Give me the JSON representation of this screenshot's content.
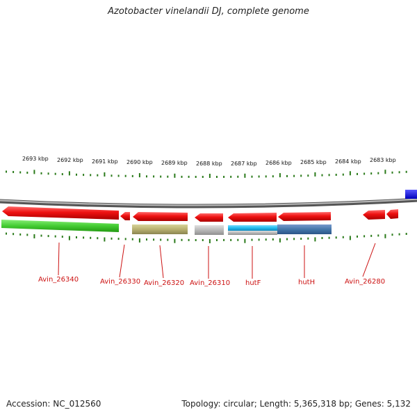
{
  "title": "Azotobacter vinelandii DJ, complete genome",
  "footer": {
    "accession": "Accession: NC_012560",
    "summary": "Topology: circular; Length: 5,365,318 bp; Genes: 5,132"
  },
  "scale_labels": [
    "2693 kbp",
    "2692 kbp",
    "2691 kbp",
    "2690 kbp",
    "2689 kbp",
    "2688 kbp",
    "2687 kbp",
    "2686 kbp",
    "2685 kbp",
    "2684 kbp",
    "2683 kbp"
  ],
  "gene_labels": [
    "Avin_26340",
    "Avin_26330",
    "Avin_26320",
    "Avin_26310",
    "hutF",
    "hutH",
    "Avin_26280"
  ],
  "colors": {
    "gene": "#ee1111",
    "tick": "#2a7a1a",
    "backbone": "#888888",
    "label": "#cc1111",
    "cds_green": "#44cc33",
    "cds_olive": "#b8b070",
    "cds_gray": "#b8b8b8",
    "cds_cyan": "#22bbee",
    "cds_steel": "#4477aa",
    "edge_blue": "#0000ee"
  }
}
